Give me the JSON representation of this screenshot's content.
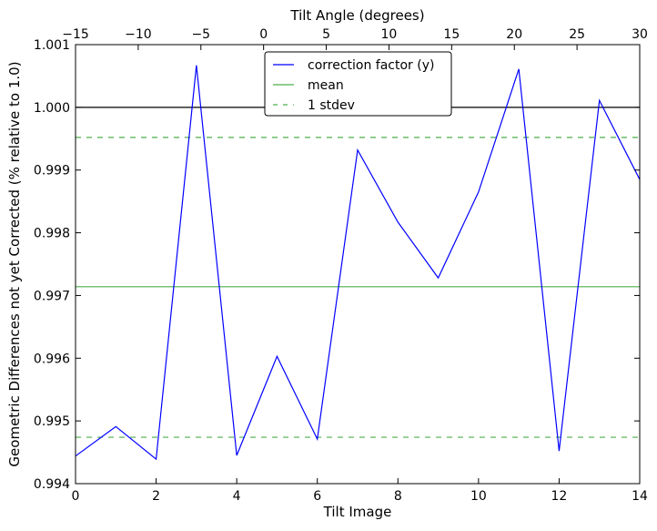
{
  "chart_data": {
    "type": "line",
    "xlabel": "Tilt Image",
    "ylabel": "Geometric Differences not yet Corrected (% relative to 1.0)",
    "x2label": "Tilt Angle (degrees)",
    "xlim": [
      0,
      14
    ],
    "ylim": [
      0.994,
      1.001
    ],
    "x2lim": [
      -15,
      30
    ],
    "xticks": [
      0,
      2,
      4,
      6,
      8,
      10,
      12,
      14
    ],
    "yticks": [
      0.994,
      0.995,
      0.996,
      0.997,
      0.998,
      0.999,
      1.0,
      1.001
    ],
    "ytick_labels": [
      "0.994",
      "0.995",
      "0.996",
      "0.997",
      "0.998",
      "0.999",
      "1.000",
      "1.001"
    ],
    "x2ticks": [
      -15,
      -10,
      -5,
      0,
      5,
      10,
      15,
      20,
      25,
      30
    ],
    "x2tick_labels": [
      "−15",
      "−10",
      "−5",
      "0",
      "5",
      "10",
      "15",
      "20",
      "25",
      "30"
    ],
    "grid": false,
    "legend_placement": "top-center",
    "series": [
      {
        "name": "correction factor (y)",
        "color": "#0000ff",
        "style": "solid",
        "x": [
          0,
          1,
          2,
          3,
          4,
          5,
          6,
          7,
          8,
          9,
          10,
          11,
          12,
          13,
          14
        ],
        "values": [
          0.99444,
          0.99491,
          0.99439,
          1.00067,
          0.99445,
          0.99603,
          0.99471,
          0.99932,
          0.99817,
          0.99728,
          0.99865,
          1.00061,
          0.99452,
          1.00011,
          0.99885
        ]
      },
      {
        "name": "mean",
        "color": "#4daf4a",
        "style": "solid",
        "value": 0.99714
      },
      {
        "name": "1 stdev",
        "color": "#4daf4a",
        "style": "dashed",
        "values": [
          0.99952,
          0.99474
        ]
      }
    ],
    "reference_line": {
      "value": 1.0,
      "color": "#000000"
    }
  }
}
